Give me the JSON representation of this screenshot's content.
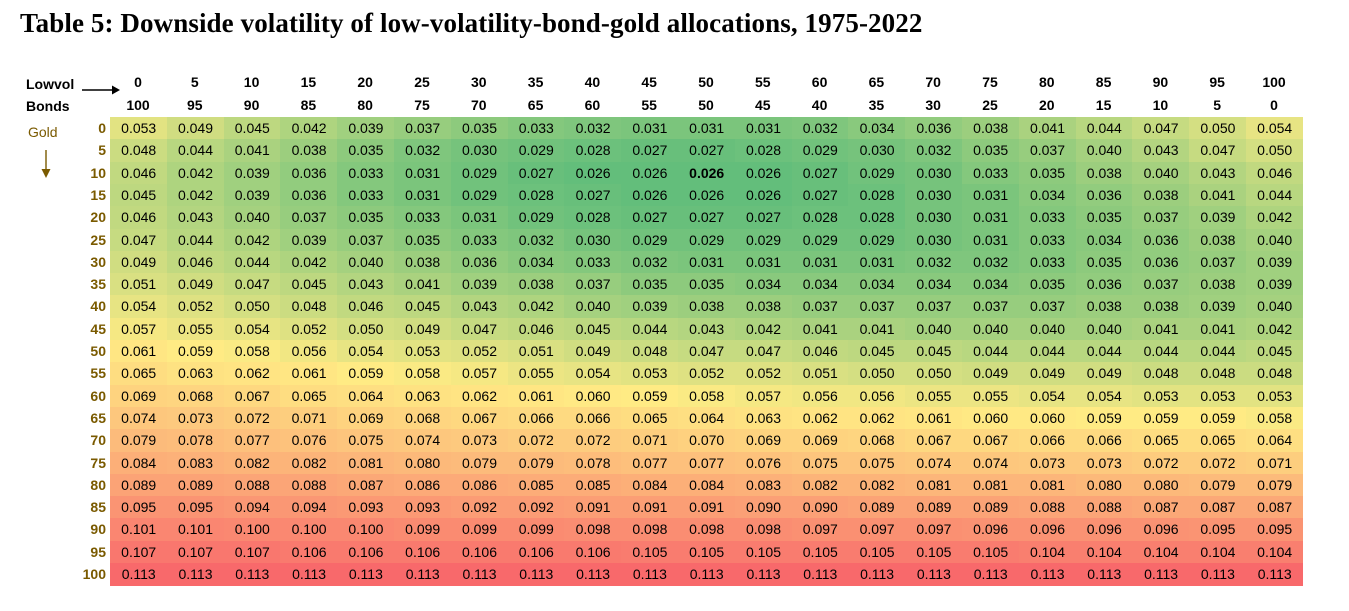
{
  "title": "Table 5: Downside volatility of low-volatility-bond-gold allocations, 1975-2022",
  "labels": {
    "lowvol": "Lowvol",
    "bonds": "Bonds",
    "gold": "Gold"
  },
  "icons": {
    "right_arrow": "arrow-right-icon",
    "down_arrow": "arrow-down-icon"
  },
  "colors": {
    "low": "#63be7b",
    "mid": "#ffeb84",
    "high": "#f8696b"
  },
  "chart_data": {
    "type": "heatmap",
    "lowvol_headers": [
      "0",
      "5",
      "10",
      "15",
      "20",
      "25",
      "30",
      "35",
      "40",
      "45",
      "50",
      "55",
      "60",
      "65",
      "70",
      "75",
      "80",
      "85",
      "90",
      "95",
      "100"
    ],
    "bonds_headers": [
      "100",
      "95",
      "90",
      "85",
      "80",
      "75",
      "70",
      "65",
      "60",
      "55",
      "50",
      "45",
      "40",
      "35",
      "30",
      "25",
      "20",
      "15",
      "10",
      "5",
      "0"
    ],
    "gold_rows": [
      "0",
      "5",
      "10",
      "15",
      "20",
      "25",
      "30",
      "35",
      "40",
      "45",
      "50",
      "55",
      "60",
      "65",
      "70",
      "75",
      "80",
      "85",
      "90",
      "95",
      "100"
    ],
    "highlight": {
      "row": 2,
      "col": 10
    },
    "values": [
      [
        "0.053",
        "0.049",
        "0.045",
        "0.042",
        "0.039",
        "0.037",
        "0.035",
        "0.033",
        "0.032",
        "0.031",
        "0.031",
        "0.031",
        "0.032",
        "0.034",
        "0.036",
        "0.038",
        "0.041",
        "0.044",
        "0.047",
        "0.050",
        "0.054"
      ],
      [
        "0.048",
        "0.044",
        "0.041",
        "0.038",
        "0.035",
        "0.032",
        "0.030",
        "0.029",
        "0.028",
        "0.027",
        "0.027",
        "0.028",
        "0.029",
        "0.030",
        "0.032",
        "0.035",
        "0.037",
        "0.040",
        "0.043",
        "0.047",
        "0.050"
      ],
      [
        "0.046",
        "0.042",
        "0.039",
        "0.036",
        "0.033",
        "0.031",
        "0.029",
        "0.027",
        "0.026",
        "0.026",
        "0.026",
        "0.026",
        "0.027",
        "0.029",
        "0.030",
        "0.033",
        "0.035",
        "0.038",
        "0.040",
        "0.043",
        "0.046"
      ],
      [
        "0.045",
        "0.042",
        "0.039",
        "0.036",
        "0.033",
        "0.031",
        "0.029",
        "0.028",
        "0.027",
        "0.026",
        "0.026",
        "0.026",
        "0.027",
        "0.028",
        "0.030",
        "0.031",
        "0.034",
        "0.036",
        "0.038",
        "0.041",
        "0.044"
      ],
      [
        "0.046",
        "0.043",
        "0.040",
        "0.037",
        "0.035",
        "0.033",
        "0.031",
        "0.029",
        "0.028",
        "0.027",
        "0.027",
        "0.027",
        "0.028",
        "0.028",
        "0.030",
        "0.031",
        "0.033",
        "0.035",
        "0.037",
        "0.039",
        "0.042"
      ],
      [
        "0.047",
        "0.044",
        "0.042",
        "0.039",
        "0.037",
        "0.035",
        "0.033",
        "0.032",
        "0.030",
        "0.029",
        "0.029",
        "0.029",
        "0.029",
        "0.029",
        "0.030",
        "0.031",
        "0.033",
        "0.034",
        "0.036",
        "0.038",
        "0.040"
      ],
      [
        "0.049",
        "0.046",
        "0.044",
        "0.042",
        "0.040",
        "0.038",
        "0.036",
        "0.034",
        "0.033",
        "0.032",
        "0.031",
        "0.031",
        "0.031",
        "0.031",
        "0.032",
        "0.032",
        "0.033",
        "0.035",
        "0.036",
        "0.037",
        "0.039"
      ],
      [
        "0.051",
        "0.049",
        "0.047",
        "0.045",
        "0.043",
        "0.041",
        "0.039",
        "0.038",
        "0.037",
        "0.035",
        "0.035",
        "0.034",
        "0.034",
        "0.034",
        "0.034",
        "0.034",
        "0.035",
        "0.036",
        "0.037",
        "0.038",
        "0.039"
      ],
      [
        "0.054",
        "0.052",
        "0.050",
        "0.048",
        "0.046",
        "0.045",
        "0.043",
        "0.042",
        "0.040",
        "0.039",
        "0.038",
        "0.038",
        "0.037",
        "0.037",
        "0.037",
        "0.037",
        "0.037",
        "0.038",
        "0.038",
        "0.039",
        "0.040"
      ],
      [
        "0.057",
        "0.055",
        "0.054",
        "0.052",
        "0.050",
        "0.049",
        "0.047",
        "0.046",
        "0.045",
        "0.044",
        "0.043",
        "0.042",
        "0.041",
        "0.041",
        "0.040",
        "0.040",
        "0.040",
        "0.040",
        "0.041",
        "0.041",
        "0.042"
      ],
      [
        "0.061",
        "0.059",
        "0.058",
        "0.056",
        "0.054",
        "0.053",
        "0.052",
        "0.051",
        "0.049",
        "0.048",
        "0.047",
        "0.047",
        "0.046",
        "0.045",
        "0.045",
        "0.044",
        "0.044",
        "0.044",
        "0.044",
        "0.044",
        "0.045"
      ],
      [
        "0.065",
        "0.063",
        "0.062",
        "0.061",
        "0.059",
        "0.058",
        "0.057",
        "0.055",
        "0.054",
        "0.053",
        "0.052",
        "0.052",
        "0.051",
        "0.050",
        "0.050",
        "0.049",
        "0.049",
        "0.049",
        "0.048",
        "0.048",
        "0.048"
      ],
      [
        "0.069",
        "0.068",
        "0.067",
        "0.065",
        "0.064",
        "0.063",
        "0.062",
        "0.061",
        "0.060",
        "0.059",
        "0.058",
        "0.057",
        "0.056",
        "0.056",
        "0.055",
        "0.055",
        "0.054",
        "0.054",
        "0.053",
        "0.053",
        "0.053"
      ],
      [
        "0.074",
        "0.073",
        "0.072",
        "0.071",
        "0.069",
        "0.068",
        "0.067",
        "0.066",
        "0.066",
        "0.065",
        "0.064",
        "0.063",
        "0.062",
        "0.062",
        "0.061",
        "0.060",
        "0.060",
        "0.059",
        "0.059",
        "0.059",
        "0.058"
      ],
      [
        "0.079",
        "0.078",
        "0.077",
        "0.076",
        "0.075",
        "0.074",
        "0.073",
        "0.072",
        "0.072",
        "0.071",
        "0.070",
        "0.069",
        "0.069",
        "0.068",
        "0.067",
        "0.067",
        "0.066",
        "0.066",
        "0.065",
        "0.065",
        "0.064"
      ],
      [
        "0.084",
        "0.083",
        "0.082",
        "0.082",
        "0.081",
        "0.080",
        "0.079",
        "0.079",
        "0.078",
        "0.077",
        "0.077",
        "0.076",
        "0.075",
        "0.075",
        "0.074",
        "0.074",
        "0.073",
        "0.073",
        "0.072",
        "0.072",
        "0.071"
      ],
      [
        "0.089",
        "0.089",
        "0.088",
        "0.088",
        "0.087",
        "0.086",
        "0.086",
        "0.085",
        "0.085",
        "0.084",
        "0.084",
        "0.083",
        "0.082",
        "0.082",
        "0.081",
        "0.081",
        "0.081",
        "0.080",
        "0.080",
        "0.079",
        "0.079"
      ],
      [
        "0.095",
        "0.095",
        "0.094",
        "0.094",
        "0.093",
        "0.093",
        "0.092",
        "0.092",
        "0.091",
        "0.091",
        "0.091",
        "0.090",
        "0.090",
        "0.089",
        "0.089",
        "0.089",
        "0.088",
        "0.088",
        "0.087",
        "0.087",
        "0.087"
      ],
      [
        "0.101",
        "0.101",
        "0.100",
        "0.100",
        "0.100",
        "0.099",
        "0.099",
        "0.099",
        "0.098",
        "0.098",
        "0.098",
        "0.098",
        "0.097",
        "0.097",
        "0.097",
        "0.096",
        "0.096",
        "0.096",
        "0.096",
        "0.095",
        "0.095"
      ],
      [
        "0.107",
        "0.107",
        "0.107",
        "0.106",
        "0.106",
        "0.106",
        "0.106",
        "0.106",
        "0.106",
        "0.105",
        "0.105",
        "0.105",
        "0.105",
        "0.105",
        "0.105",
        "0.105",
        "0.104",
        "0.104",
        "0.104",
        "0.104",
        "0.104"
      ],
      [
        "0.113",
        "0.113",
        "0.113",
        "0.113",
        "0.113",
        "0.113",
        "0.113",
        "0.113",
        "0.113",
        "0.113",
        "0.113",
        "0.113",
        "0.113",
        "0.113",
        "0.113",
        "0.113",
        "0.113",
        "0.113",
        "0.113",
        "0.113",
        "0.113"
      ]
    ]
  }
}
